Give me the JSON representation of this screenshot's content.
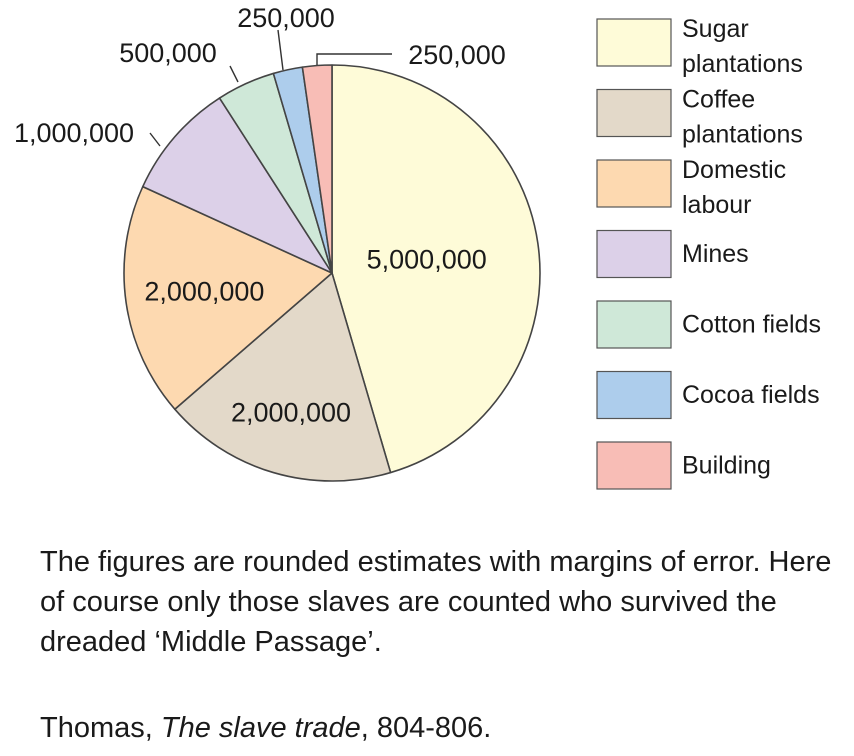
{
  "chart_data": {
    "type": "pie",
    "title": "",
    "start_angle_deg": 0,
    "direction": "clockwise",
    "slices": [
      {
        "label": "Sugar plantations",
        "value": 5000000,
        "value_label": "5,000,000",
        "color": "#fefbd8"
      },
      {
        "label": "Coffee plantations",
        "value": 2000000,
        "value_label": "2,000,000",
        "color": "#e3d9c9"
      },
      {
        "label": "Domestic labour",
        "value": 2000000,
        "value_label": "2,000,000",
        "color": "#fdd9b0"
      },
      {
        "label": "Mines",
        "value": 1000000,
        "value_label": "1,000,000",
        "color": "#dcd0e8"
      },
      {
        "label": "Cotton fields",
        "value": 500000,
        "value_label": "500,000",
        "color": "#cfe8d8"
      },
      {
        "label": "Cocoa fields",
        "value": 250000,
        "value_label": "250,000",
        "color": "#adcdec"
      },
      {
        "label": "Building",
        "value": 250000,
        "value_label": "250,000",
        "color": "#f8bdb6"
      }
    ],
    "legend": {
      "placement": "right",
      "entries": [
        [
          "Sugar",
          "plantations"
        ],
        [
          "Coffee",
          "plantations"
        ],
        [
          "Domestic",
          "labour"
        ],
        [
          "Mines"
        ],
        [
          "Cotton fields"
        ],
        [
          "Cocoa fields"
        ],
        [
          "Building"
        ]
      ]
    }
  },
  "note": "The figures are rounded estimates with margins of error. Here of course only those slaves are counted who survived the dreaded ‘Middle Passage’.",
  "citation": {
    "author": "Thomas, ",
    "title": "The slave trade",
    "pages": ", 804-806."
  }
}
